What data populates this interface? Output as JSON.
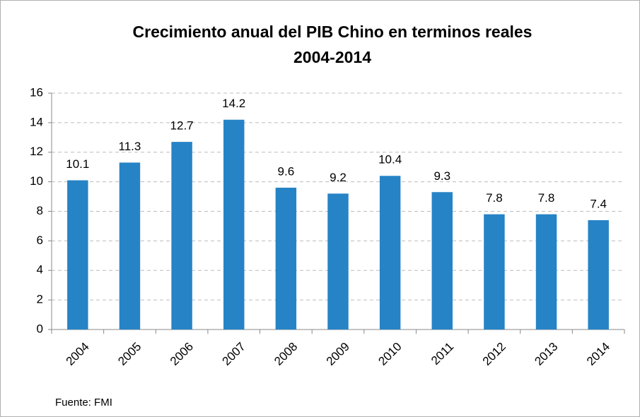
{
  "chart_data": {
    "type": "bar",
    "title": "Crecimiento anual del PIB Chino en terminos reales",
    "subtitle": "2004-2014",
    "source": "Fuente: FMI",
    "categories": [
      "2004",
      "2005",
      "2006",
      "2007",
      "2008",
      "2009",
      "2010",
      "2011",
      "2012",
      "2013",
      "2014"
    ],
    "values": [
      10.1,
      11.3,
      12.7,
      14.2,
      9.6,
      9.2,
      10.4,
      9.3,
      7.8,
      7.8,
      7.4
    ],
    "color": "#2683c6",
    "ylim": [
      0,
      16
    ],
    "yticks": [
      0,
      2,
      4,
      6,
      8,
      10,
      12,
      14,
      16
    ],
    "grid": true
  }
}
